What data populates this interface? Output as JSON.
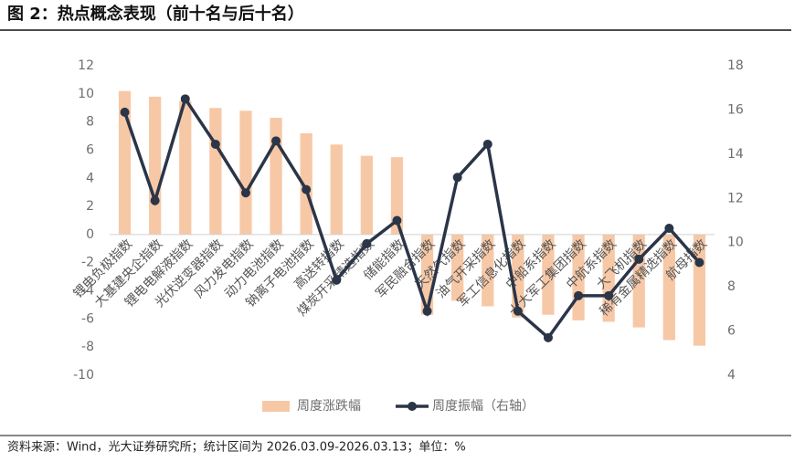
{
  "chart_data": {
    "type": "bar+line",
    "title": "图 2：热点概念表现（前十名与后十名）",
    "categories": [
      "锂电负极指数",
      "大基建央企指数",
      "锂电电解液指数",
      "光伏逆变器指数",
      "风力发电指数",
      "动力电池指数",
      "钠离子电池指数",
      "高送转指数",
      "煤炭开采精选指数",
      "储能指数",
      "军民融合指数",
      "天然气指数",
      "油气开采指数",
      "军工信息化指数",
      "中船系指数",
      "十大军工集团指数",
      "中航系指数",
      "大飞机指数",
      "稀有金属精选指数",
      "航母指数"
    ],
    "series": [
      {
        "name": "周度涨跌幅",
        "type": "bar",
        "color": "#f7c8a6",
        "axis": "y",
        "values": [
          10.2,
          9.8,
          9.5,
          9.0,
          8.8,
          8.3,
          7.2,
          6.4,
          5.6,
          5.5,
          -5.7,
          -4.7,
          -5.1,
          -5.9,
          -5.7,
          -6.1,
          -6.2,
          -6.6,
          -7.5,
          -7.9
        ]
      },
      {
        "name": "周度振幅（右轴）",
        "type": "line",
        "color": "#2b3548",
        "axis": "y2",
        "values": [
          15.9,
          11.9,
          16.5,
          14.45,
          12.25,
          14.6,
          12.4,
          8.3,
          9.95,
          11.0,
          6.9,
          12.95,
          14.45,
          6.9,
          5.7,
          7.6,
          7.6,
          9.25,
          10.65,
          9.1
        ]
      }
    ],
    "ylim": [
      -10,
      12
    ],
    "yticks": [
      -10,
      -8,
      -6,
      -4,
      -2,
      0,
      2,
      4,
      6,
      8,
      10,
      12
    ],
    "y2lim": [
      4,
      18
    ],
    "y2ticks": [
      4,
      6,
      8,
      10,
      12,
      14,
      16,
      18
    ],
    "legend": "bottom",
    "source": "资料来源：Wind，光大证券研究所；统计区间为 2026.03.09-2026.03.13；单位：%"
  }
}
